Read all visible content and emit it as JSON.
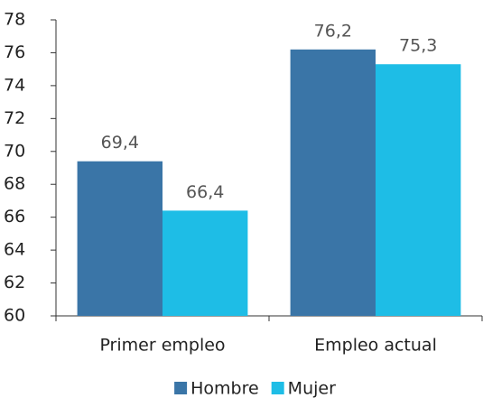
{
  "chart_data": {
    "type": "bar",
    "categories": [
      "Primer empleo",
      "Empleo actual"
    ],
    "series": [
      {
        "name": "Hombre",
        "color": "#3a75a7",
        "values": [
          69.4,
          76.2
        ],
        "value_labels": [
          "69,4",
          "76,2"
        ]
      },
      {
        "name": "Mujer",
        "color": "#1ebde6",
        "values": [
          66.4,
          75.3
        ],
        "value_labels": [
          "66,4",
          "75,3"
        ]
      }
    ],
    "ylim": [
      60,
      78
    ],
    "yticks": [
      60,
      62,
      64,
      66,
      68,
      70,
      72,
      74,
      76,
      78
    ],
    "grid": false,
    "legend": "bottom"
  }
}
